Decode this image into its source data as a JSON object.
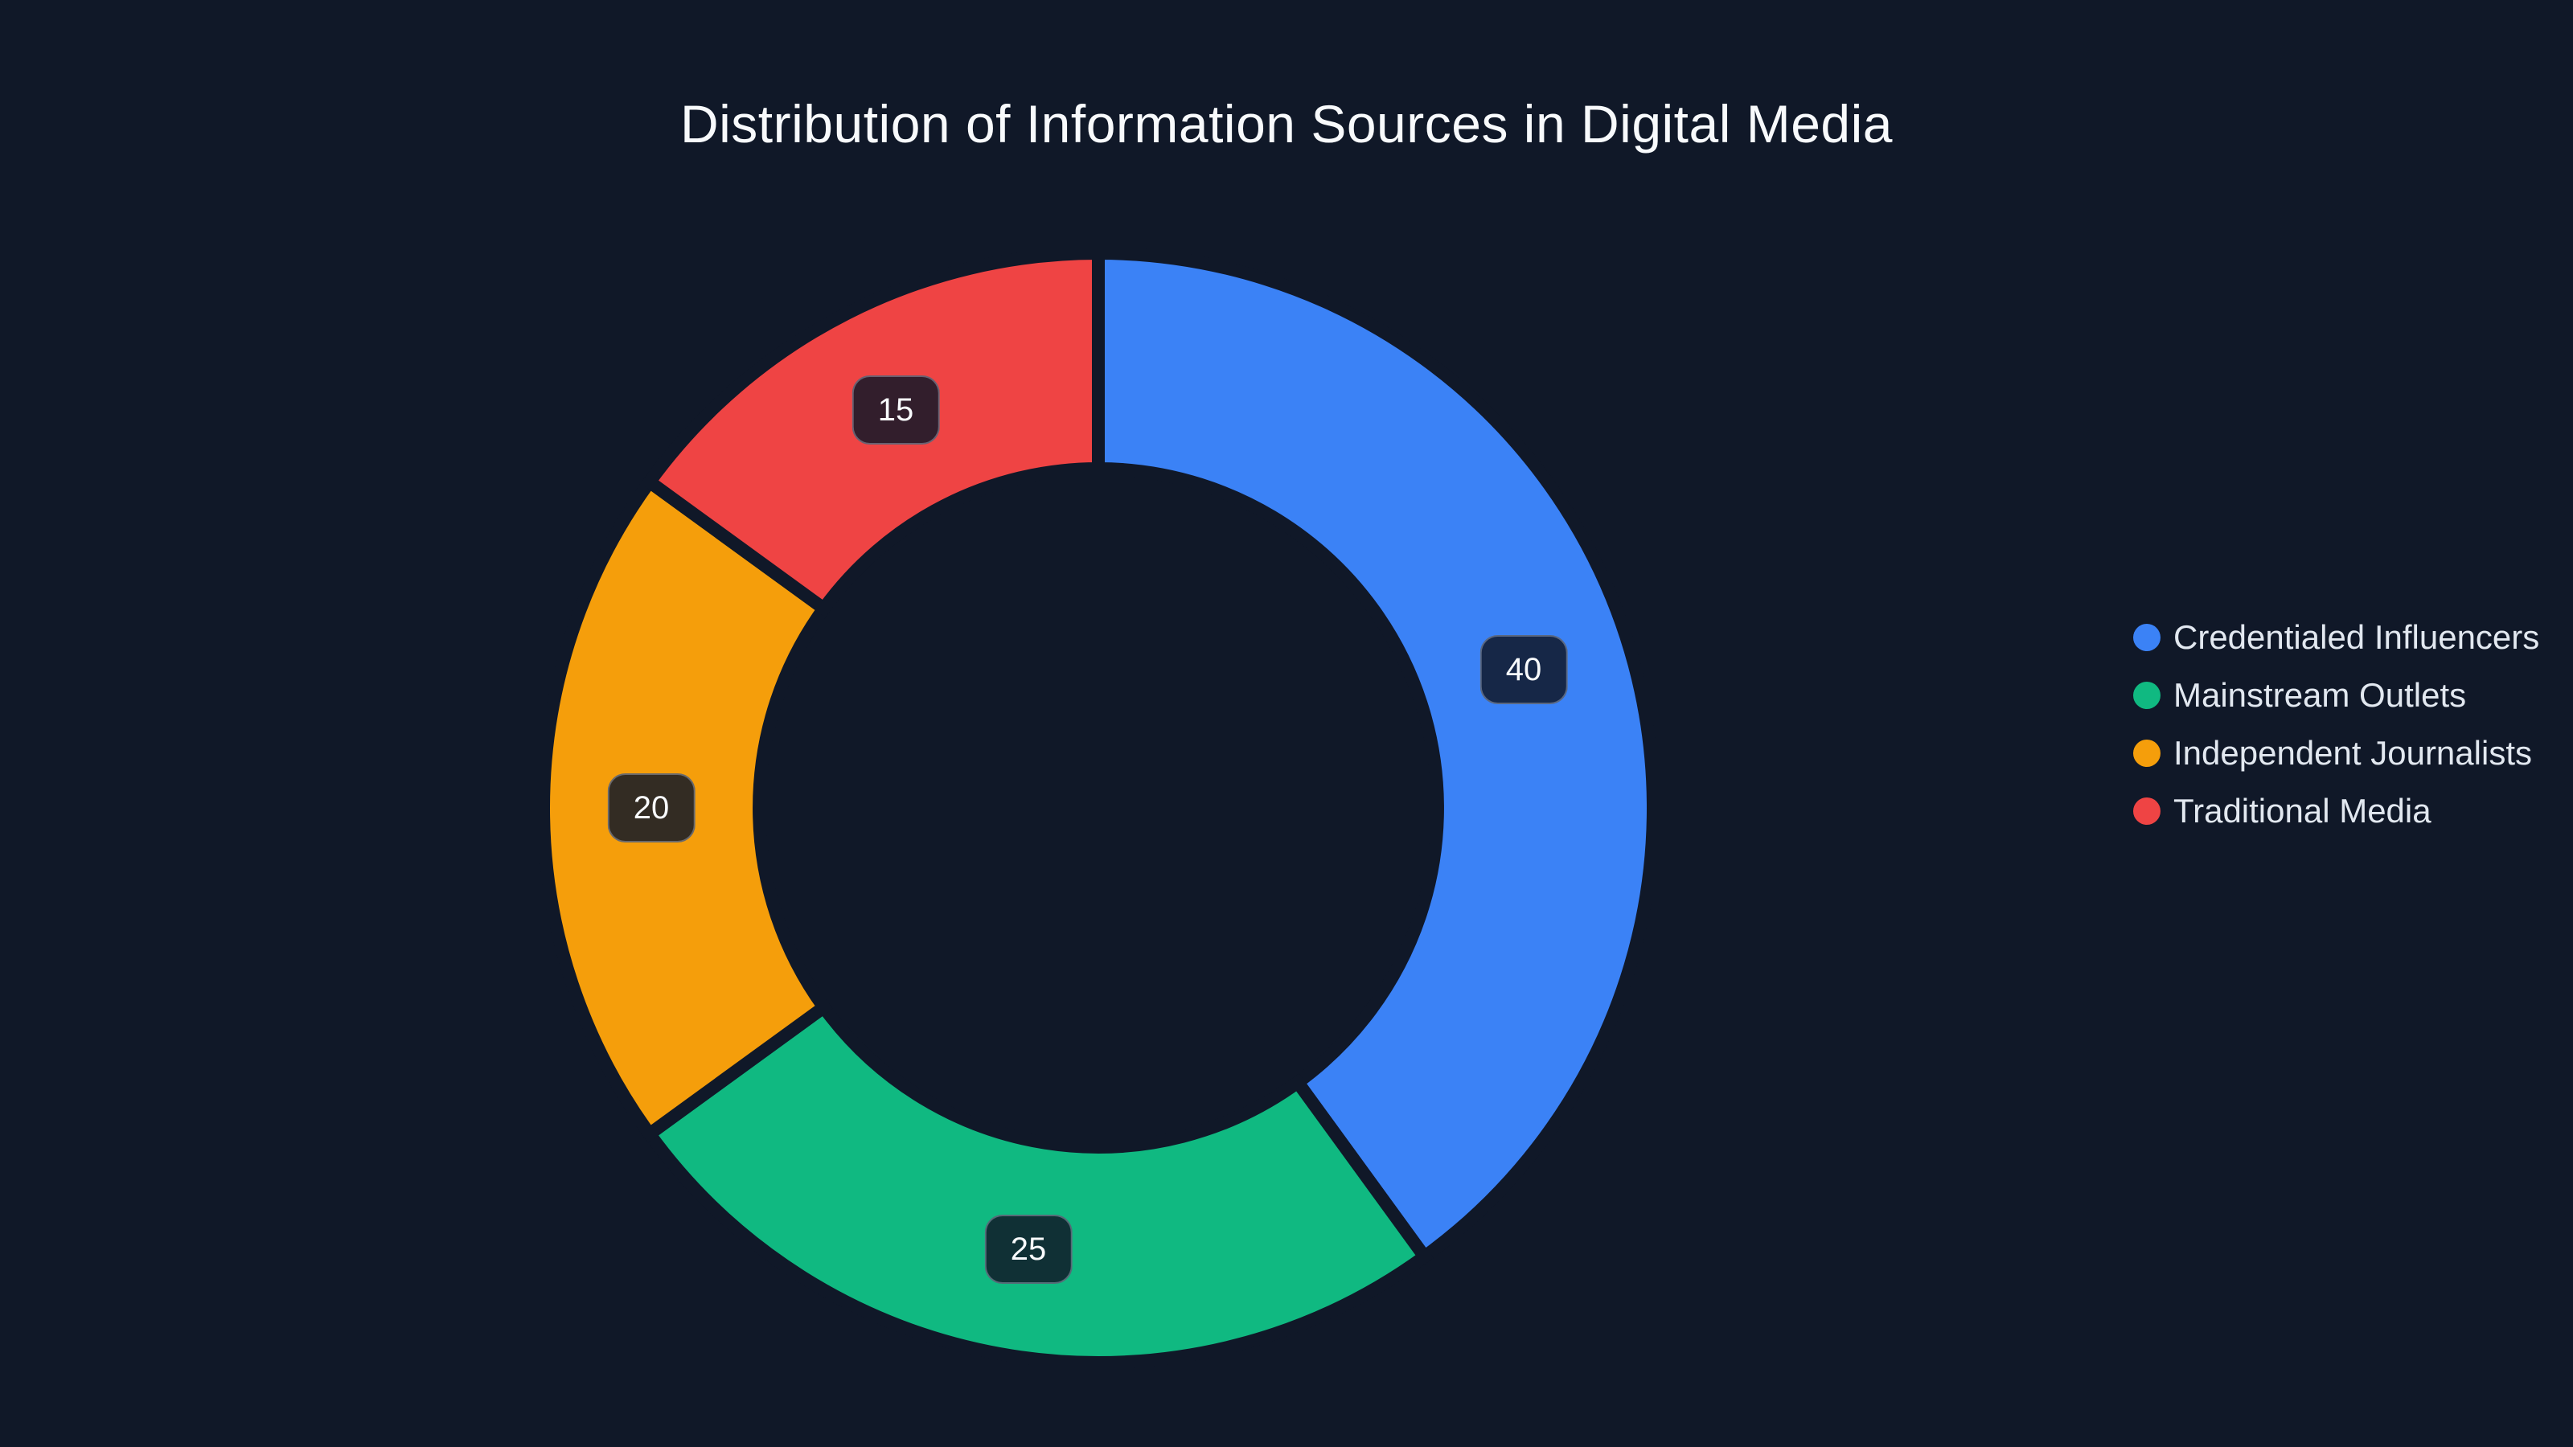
{
  "theme": {
    "background": "#101828",
    "title-color": "#f8fafc",
    "legend-text-color": "#e2e8f0",
    "label-bg": "rgba(16,24,40,0.85)",
    "label-border": "rgba(170,180,200,0.45)",
    "label-text": "#f8fafc"
  },
  "header": {
    "title": "Distribution of Information Sources in Digital Media"
  },
  "chart_data": {
    "type": "pie",
    "subtype": "donut",
    "title": "Distribution of Information Sources in Digital Media",
    "categories": [
      "Credentialed Influencers",
      "Mainstream Outlets",
      "Independent Journalists",
      "Traditional Media"
    ],
    "values": [
      40,
      25,
      20,
      15
    ],
    "labels_shown": [
      "40",
      "25",
      "20",
      "15"
    ],
    "colors": [
      "#3b82f6",
      "#10b981",
      "#f59e0b",
      "#ef4444"
    ],
    "total": 100,
    "hole_ratio": 0.61,
    "start_angle_deg": 0,
    "direction": "clockwise",
    "legend_position": "right",
    "legend_entries": [
      "Credentialed Influencers",
      "Mainstream Outlets",
      "Independent Journalists",
      "Traditional Media"
    ]
  }
}
